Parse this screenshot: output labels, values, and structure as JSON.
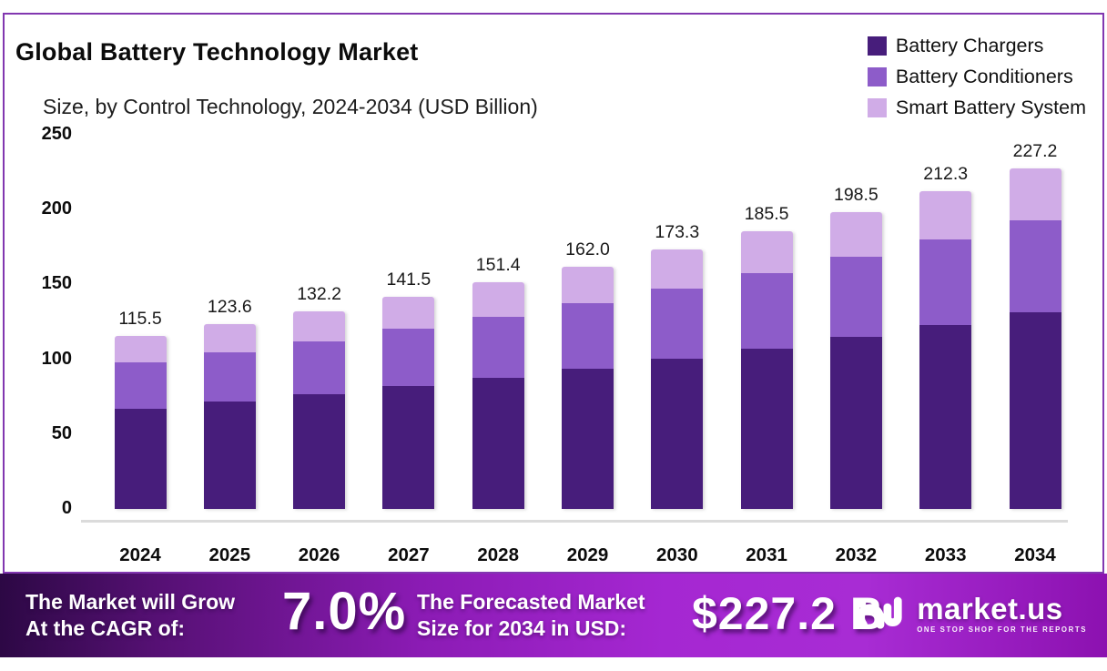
{
  "header": {
    "title": "Global Battery Technology Market",
    "subtitle": "Size, by Control Technology, 2024-2034 (USD Billion)"
  },
  "chart_data": {
    "type": "bar",
    "stacked": true,
    "title": "Global Battery Technology Market Size, by Control Technology, 2024-2034 (USD Billion)",
    "categories": [
      "2024",
      "2025",
      "2026",
      "2027",
      "2028",
      "2029",
      "2030",
      "2031",
      "2032",
      "2033",
      "2034"
    ],
    "series": [
      {
        "name": "Battery Chargers",
        "color": "#471d7b",
        "values": [
          66.9,
          71.5,
          76.4,
          81.8,
          87.5,
          93.7,
          100.2,
          107.2,
          114.7,
          122.7,
          131.3
        ]
      },
      {
        "name": "Battery Conditioners",
        "color": "#8d5cc9",
        "values": [
          31.1,
          33.4,
          35.7,
          38.7,
          40.9,
          43.7,
          46.8,
          50.1,
          53.6,
          57.3,
          61.3
        ]
      },
      {
        "name": "Smart Battery System",
        "color": "#d0ace7",
        "values": [
          17.5,
          18.7,
          20.1,
          21.0,
          23.0,
          24.6,
          26.3,
          28.2,
          30.2,
          32.3,
          34.6
        ]
      }
    ],
    "totals": [
      115.5,
      123.6,
      132.2,
      141.5,
      151.4,
      162.0,
      173.3,
      185.5,
      198.5,
      212.3,
      227.2
    ],
    "total_labels": [
      "115.5",
      "123.6",
      "132.2",
      "141.5",
      "151.4",
      "162.0",
      "173.3",
      "185.5",
      "198.5",
      "212.3",
      "227.2"
    ],
    "xlabel": "",
    "ylabel": "",
    "ylim": [
      0,
      250
    ],
    "yticks": [
      0,
      50,
      100,
      150,
      200,
      250
    ],
    "grid": false,
    "legend_position": "top-right"
  },
  "banner": {
    "cagr_caption_line1": "The Market will Grow",
    "cagr_caption_line2": "At the CAGR of:",
    "cagr_value": "7.0%",
    "forecast_caption_line1": "The Forecasted Market",
    "forecast_caption_line2": "Size for 2034 in USD:",
    "forecast_value": "$227.2 B",
    "brand_name": "market.us",
    "brand_tagline": "ONE STOP SHOP FOR THE REPORTS"
  },
  "colors": {
    "frame_border": "#8237b0",
    "axis_line": "#dbdbdb",
    "banner_dark": "#2c0844",
    "banner_bright": "#a82cd4",
    "text": "#0c0c0c"
  }
}
